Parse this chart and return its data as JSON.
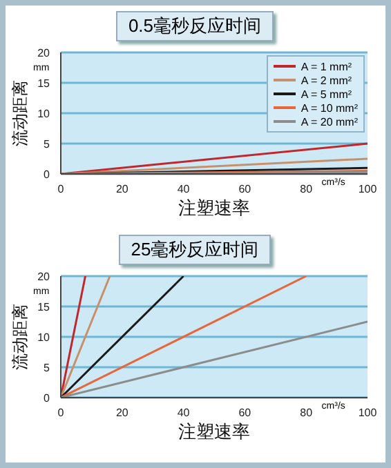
{
  "chart_data": [
    {
      "type": "line",
      "title": "0.5毫秒反应时间",
      "xlabel": "注塑速率",
      "ylabel": "流动距离",
      "annotations": [
        "mm",
        "cm³/s"
      ],
      "xlim": [
        0,
        100
      ],
      "xticks": [
        0,
        20,
        40,
        60,
        80,
        100
      ],
      "ylim": [
        0,
        20
      ],
      "yticks": [
        0,
        5,
        10,
        15,
        20
      ],
      "grid": "y",
      "legend": "top right",
      "marker": "none",
      "line_style": "solid",
      "series": [
        {
          "name": "A = 1 mm²",
          "color": "#c0282d",
          "x": [
            0,
            100
          ],
          "values": [
            0,
            5
          ]
        },
        {
          "name": "A = 2 mm²",
          "color": "#c8906a",
          "x": [
            0,
            100
          ],
          "values": [
            0,
            2.5
          ]
        },
        {
          "name": "A = 5 mm²",
          "color": "#1a1a1a",
          "x": [
            0,
            100
          ],
          "values": [
            0,
            1
          ]
        },
        {
          "name": "A = 10 mm²",
          "color": "#e8663a",
          "x": [
            0,
            100
          ],
          "values": [
            0,
            0.5
          ]
        },
        {
          "name": "A = 20 mm²",
          "color": "#8c8c8c",
          "x": [
            0,
            100
          ],
          "values": [
            0,
            0.3
          ]
        }
      ]
    },
    {
      "type": "line",
      "title": "25毫秒反应时间",
      "xlabel": "注塑速率",
      "ylabel": "流动距离",
      "annotations": [
        "mm",
        "cm³/s"
      ],
      "xlim": [
        0,
        100
      ],
      "xticks": [
        0,
        20,
        40,
        60,
        80,
        100
      ],
      "ylim": [
        0,
        20
      ],
      "yticks": [
        0,
        5,
        10,
        15,
        20
      ],
      "grid": "y",
      "marker": "none",
      "line_style": "solid",
      "series": [
        {
          "color": "#c0282d",
          "x": [
            0,
            8
          ],
          "values": [
            0,
            20
          ]
        },
        {
          "color": "#c8906a",
          "x": [
            0,
            16
          ],
          "values": [
            0,
            20
          ]
        },
        {
          "color": "#1a1a1a",
          "x": [
            0,
            40
          ],
          "values": [
            0,
            20
          ]
        },
        {
          "color": "#e8663a",
          "x": [
            0,
            80
          ],
          "values": [
            0,
            20
          ]
        },
        {
          "color": "#8c8c8c",
          "x": [
            0,
            100
          ],
          "values": [
            0,
            12.5
          ]
        }
      ]
    }
  ]
}
